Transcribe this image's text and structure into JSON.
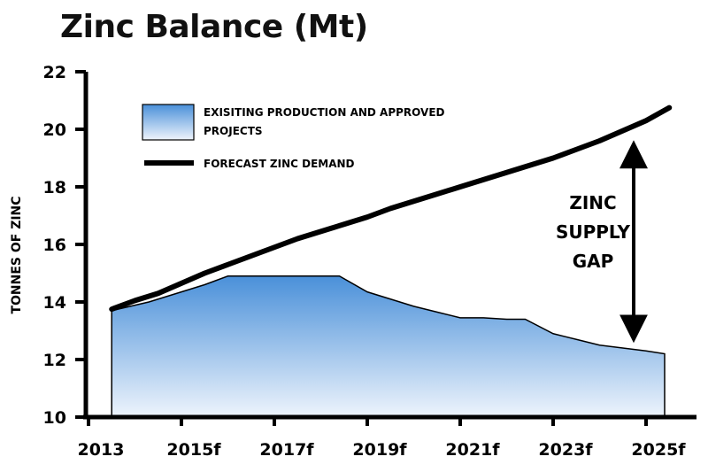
{
  "chart_data": {
    "type": "area",
    "title": "Zinc Balance (Mt)",
    "xlabel": "",
    "ylabel": "TONNES OF ZINC",
    "ylim": [
      10,
      22
    ],
    "yticks": [
      10,
      12,
      14,
      16,
      18,
      20,
      22
    ],
    "x_tick_labels": [
      "2013",
      "2015f",
      "2017f",
      "2019f",
      "2021f",
      "2023f",
      "2025f"
    ],
    "x_tick_years": [
      2013,
      2015,
      2017,
      2019,
      2021,
      2023,
      2025
    ],
    "xlim": [
      2013,
      2025.5
    ],
    "grid": false,
    "legend_position": "top-left",
    "series": [
      {
        "name": "EXISITING PRODUCTION AND APPROVED PROJECTS",
        "kind": "area",
        "color": "#4a90d9",
        "color_light": "#eef4fc",
        "x": [
          2013.5,
          2014.3,
          2014.8,
          2015.5,
          2016.0,
          2016.5,
          2017.0,
          2017.5,
          2018.0,
          2018.4,
          2019.0,
          2019.5,
          2020.0,
          2020.5,
          2021.0,
          2021.5,
          2022.0,
          2022.4,
          2023.0,
          2023.5,
          2024.0,
          2024.5,
          2025.0,
          2025.4
        ],
        "y": [
          13.7,
          14.0,
          14.25,
          14.6,
          14.9,
          14.9,
          14.9,
          14.9,
          14.9,
          14.9,
          14.35,
          14.1,
          13.85,
          13.65,
          13.45,
          13.45,
          13.4,
          13.4,
          12.9,
          12.7,
          12.5,
          12.4,
          12.3,
          12.2
        ]
      },
      {
        "name": "FORECAST ZINC DEMAND",
        "kind": "line",
        "color": "#000000",
        "x": [
          2013.5,
          2014.0,
          2014.5,
          2015.0,
          2015.5,
          2016.0,
          2016.5,
          2017.0,
          2017.5,
          2018.0,
          2018.5,
          2019.0,
          2019.5,
          2020.0,
          2020.5,
          2021.0,
          2021.5,
          2022.0,
          2022.5,
          2023.0,
          2023.5,
          2024.0,
          2024.5,
          2025.0,
          2025.5
        ],
        "y": [
          13.75,
          14.05,
          14.3,
          14.65,
          15.0,
          15.3,
          15.6,
          15.9,
          16.2,
          16.45,
          16.7,
          16.95,
          17.25,
          17.5,
          17.75,
          18.0,
          18.25,
          18.5,
          18.75,
          19.0,
          19.3,
          19.6,
          19.95,
          20.3,
          20.75
        ]
      }
    ],
    "annotation": {
      "lines": [
        "ZINC",
        "SUPPLY",
        "GAP"
      ],
      "arrow_x": 2025.0,
      "arrow_y_top": 19.5,
      "arrow_y_bottom": 12.7
    }
  }
}
